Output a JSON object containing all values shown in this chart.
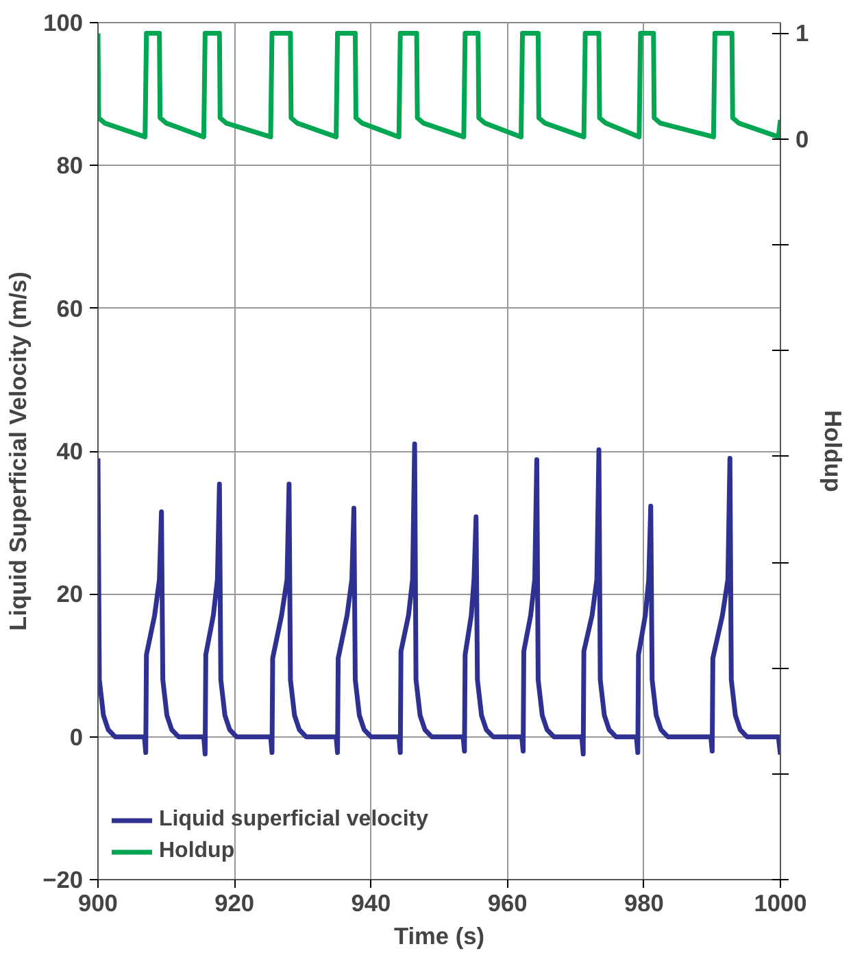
{
  "chart_data": {
    "type": "line",
    "xlabel": "Time (s)",
    "ylabel": "Liquid Superficial Velocity (m/s)",
    "y2label": "Holdup",
    "xlim": [
      900,
      1000
    ],
    "xticks": [
      900,
      920,
      940,
      960,
      980,
      1000
    ],
    "ylim": [
      -20,
      100
    ],
    "yticks": [
      -20,
      0,
      20,
      40,
      60,
      80,
      100
    ],
    "y2lim": [
      -7,
      1.1
    ],
    "y2ticks": [
      {
        "value": -7,
        "label": null
      },
      {
        "value": -6,
        "label": null
      },
      {
        "value": -5,
        "label": null
      },
      {
        "value": -4,
        "label": null
      },
      {
        "value": -3,
        "label": null
      },
      {
        "value": -2,
        "label": null
      },
      {
        "value": -1,
        "label": null
      },
      0,
      1
    ],
    "grid": true,
    "legend": "bottom left",
    "marker": "none",
    "line_style": "solid",
    "series": [
      {
        "name": "Liquid superficial velocity",
        "color": "#2e3192",
        "x": [
          900,
          900.2,
          900.8,
          901.5,
          902.5,
          906.8,
          907.0,
          907.1,
          908.3,
          909.0,
          909.3,
          909.5,
          910.1,
          910.8,
          911.8,
          915.5,
          915.7,
          915.8,
          916.9,
          917.5,
          917.8,
          918.0,
          918.6,
          919.3,
          920.3,
          925.3,
          925.5,
          925.6,
          926.9,
          927.7,
          928.0,
          928.2,
          928.8,
          929.5,
          930.5,
          934.9,
          935.1,
          935.2,
          936.5,
          937.2,
          937.5,
          937.7,
          938.3,
          939.0,
          940.0,
          944.1,
          944.3,
          944.4,
          945.5,
          946.1,
          946.4,
          946.6,
          947.2,
          947.9,
          948.9,
          953.5,
          953.7,
          953.8,
          954.7,
          955.1,
          955.4,
          955.6,
          956.2,
          956.9,
          957.9,
          962.1,
          962.3,
          962.4,
          963.4,
          964.0,
          964.3,
          964.5,
          965.1,
          965.8,
          966.8,
          970.9,
          971.1,
          971.2,
          972.4,
          973.1,
          973.4,
          973.6,
          974.2,
          974.9,
          975.9,
          978.9,
          979.1,
          979.2,
          980.2,
          980.7,
          981.0,
          981.2,
          981.8,
          982.5,
          983.5,
          989.8,
          990.0,
          990.1,
          991.5,
          992.3,
          992.6,
          992.8,
          993.4,
          994.1,
          995.1,
          999.7,
          1000
        ],
        "values": [
          39,
          8,
          3,
          1,
          0,
          0,
          -2.2,
          11.5,
          17,
          22,
          31.5,
          8,
          3,
          1,
          0,
          0,
          -2.4,
          11.5,
          17,
          22,
          35.4,
          8,
          3,
          1,
          0,
          0,
          -2.2,
          11,
          17,
          22,
          35.4,
          8,
          3,
          1,
          0,
          0,
          -2.2,
          11,
          17,
          22,
          32,
          8,
          3,
          1,
          0,
          0,
          -2.2,
          12,
          17,
          22,
          41,
          8,
          3,
          1,
          0,
          0,
          -2,
          11.5,
          17,
          22,
          30.8,
          8,
          3,
          1,
          0,
          0,
          -2,
          12,
          17,
          22,
          38.8,
          8,
          3,
          1,
          0,
          0,
          -2.4,
          12,
          17,
          22,
          40.2,
          8,
          3,
          1,
          0,
          0,
          -2.2,
          11.5,
          17,
          22,
          32.3,
          8,
          3,
          1,
          0,
          0,
          -2,
          11,
          17,
          22,
          39,
          8,
          3,
          1,
          0,
          0,
          -2.5
        ]
      },
      {
        "name": "Holdup",
        "color": "#00a651",
        "axis": "y2",
        "x": [
          900,
          900.1,
          901,
          906.9,
          907.1,
          909.0,
          909.1,
          910,
          915.5,
          915.7,
          917.8,
          917.9,
          918.8,
          925.3,
          925.5,
          928.2,
          928.3,
          929.2,
          934.9,
          935.1,
          937.7,
          937.8,
          938.7,
          944.1,
          944.3,
          946.7,
          946.8,
          947.7,
          953.6,
          953.8,
          955.7,
          955.8,
          956.7,
          962.0,
          962.2,
          964.5,
          964.6,
          965.5,
          971.2,
          971.4,
          973.4,
          973.5,
          974.4,
          979.3,
          979.5,
          981.4,
          981.5,
          982.4,
          990.2,
          990.4,
          992.9,
          993.0,
          993.9,
          999.7,
          1000
        ],
        "values": [
          1,
          0.2,
          0.15,
          0.02,
          1,
          1,
          0.2,
          0.15,
          0.02,
          1,
          1,
          0.2,
          0.15,
          0.02,
          1,
          1,
          0.2,
          0.15,
          0.02,
          1,
          1,
          0.2,
          0.15,
          0.02,
          1,
          1,
          0.2,
          0.15,
          0.02,
          1,
          1,
          0.2,
          0.15,
          0.02,
          1,
          1,
          0.2,
          0.15,
          0.02,
          1,
          1,
          0.2,
          0.15,
          0.02,
          1,
          1,
          0.2,
          0.15,
          0.02,
          1,
          1,
          0.2,
          0.15,
          0.02,
          0.18
        ]
      }
    ]
  }
}
